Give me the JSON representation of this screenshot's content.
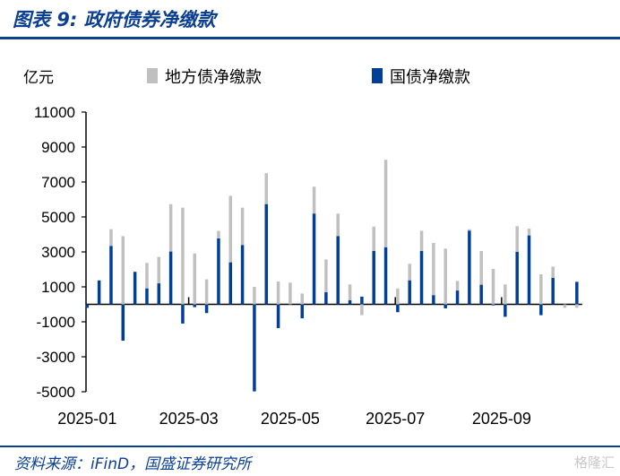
{
  "header": {
    "title": "图表 9:  政府债券净缴款"
  },
  "footer": {
    "source": "资料来源：iFinD，国盛证券研究所",
    "watermark": "格隆汇"
  },
  "colors": {
    "accent": "#0b3f91",
    "local": "#c0c0c0",
    "government": "#003f98"
  },
  "chart_data": {
    "type": "bar",
    "stacked": true,
    "title": "政府债券净缴款",
    "ylabel": "亿元",
    "xlabel": "",
    "ylim": [
      -5000,
      11000
    ],
    "yticks": [
      11000,
      9000,
      7000,
      5000,
      3000,
      1000,
      -1000,
      -3000,
      -5000
    ],
    "xtick_labels": [
      "2025-01",
      "2025-03",
      "2025-05",
      "2025-07",
      "2025-09"
    ],
    "xtick_positions": [
      0,
      8.5,
      17,
      25.8,
      34.7
    ],
    "legend": {
      "position": "top",
      "entries": [
        "地方债净缴款",
        "国债净缴款"
      ]
    },
    "series": [
      {
        "name": "地方债净缴款",
        "values": [
          0,
          0,
          960,
          3900,
          0,
          1460,
          1510,
          2710,
          5530,
          2910,
          1430,
          430,
          3810,
          2140,
          1000,
          1770,
          1310,
          1240,
          620,
          1540,
          1880,
          1290,
          910,
          -620,
          1400,
          5010,
          910,
          950,
          1160,
          2990,
          3190,
          550,
          90,
          1930,
          2030,
          1140,
          1470,
          390,
          1720,
          650,
          -200,
          -200
        ]
      },
      {
        "name": "国债净缴款",
        "values": [
          -200,
          1370,
          3340,
          -2080,
          1860,
          910,
          1200,
          3020,
          -1100,
          -160,
          -500,
          3770,
          2400,
          3390,
          -4980,
          5730,
          -1360,
          0,
          -800,
          5190,
          690,
          3900,
          230,
          440,
          3050,
          3260,
          -450,
          1370,
          3050,
          520,
          -230,
          790,
          4210,
          1120,
          -60,
          -710,
          3000,
          3940,
          -620,
          1510,
          0,
          1290
        ]
      }
    ]
  }
}
